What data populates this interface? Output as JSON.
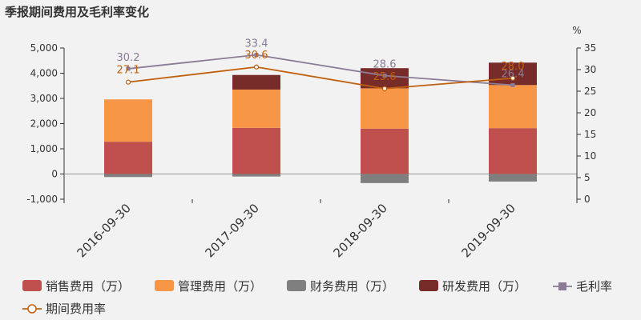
{
  "chart_data": {
    "type": "bar",
    "title": "季报期间费用及毛利率变化",
    "categories": [
      "2016-09-30",
      "2017-09-30",
      "2018-09-30",
      "2019-09-30"
    ],
    "series": [
      {
        "name": "销售费用（万）",
        "kind": "bar",
        "color": "#c0504d",
        "values": [
          1280,
          1830,
          1800,
          1820
        ]
      },
      {
        "name": "管理费用（万）",
        "kind": "bar",
        "color": "#f79646",
        "values": [
          1680,
          1520,
          1600,
          1710
        ]
      },
      {
        "name": "财务费用（万）",
        "kind": "bar",
        "color": "#7f7f7f",
        "values": [
          -120,
          -100,
          -360,
          -300
        ]
      },
      {
        "name": "研发费用（万）",
        "kind": "bar",
        "color": "#772c2a",
        "values": [
          0,
          580,
          800,
          890
        ]
      },
      {
        "name": "毛利率",
        "kind": "line",
        "axis": "right",
        "color": "#8b7b96",
        "values": [
          30.2,
          33.4,
          28.6,
          26.4
        ],
        "labels": [
          "30.2",
          "33.4",
          "28.6",
          "26.4"
        ]
      },
      {
        "name": "期间费用率",
        "kind": "line",
        "axis": "right",
        "color": "#c0600e",
        "values": [
          27.1,
          30.6,
          25.6,
          28.0
        ],
        "labels": [
          "27.1",
          "30.6",
          "25.6",
          "28.0"
        ]
      }
    ],
    "y_left": {
      "min": -1000,
      "max": 5000,
      "ticks": [
        -1000,
        0,
        1000,
        2000,
        3000,
        4000,
        5000
      ],
      "tick_labels": [
        "-1,000",
        "0",
        "1,000",
        "2,000",
        "3,000",
        "4,000",
        "5,000"
      ]
    },
    "y_right": {
      "min": 0,
      "max": 35,
      "ticks": [
        0,
        5,
        10,
        15,
        20,
        25,
        30,
        35
      ],
      "unit": "%"
    },
    "legend_position": "bottom",
    "grid": false
  }
}
